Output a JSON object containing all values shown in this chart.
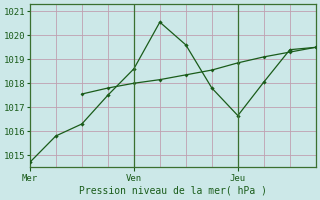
{
  "bg_color": "#cce8e8",
  "grid_color": "#c0a0b0",
  "line_color": "#1a5c1a",
  "line1_x": [
    0,
    0.5,
    1.0,
    1.5,
    2.0,
    2.5,
    3.0,
    3.5,
    4.0,
    4.5,
    5.0,
    5.5
  ],
  "line1_y": [
    1014.7,
    1015.8,
    1016.3,
    1017.5,
    1018.6,
    1020.55,
    1019.6,
    1017.8,
    1016.65,
    1018.05,
    1019.4,
    1019.5
  ],
  "line2_x": [
    1.0,
    1.5,
    2.0,
    2.5,
    3.0,
    3.5,
    4.0,
    4.5,
    5.0,
    5.5
  ],
  "line2_y": [
    1017.55,
    1017.8,
    1018.0,
    1018.15,
    1018.35,
    1018.55,
    1018.85,
    1019.1,
    1019.3,
    1019.5
  ],
  "ylim": [
    1014.5,
    1021.3
  ],
  "yticks": [
    1015,
    1016,
    1017,
    1018,
    1019,
    1020,
    1021
  ],
  "xlim": [
    0,
    5.5
  ],
  "vline_positions": [
    2.0,
    4.0
  ],
  "xtick_positions": [
    0,
    2.0,
    4.0
  ],
  "day_labels": [
    "Mer",
    "Ven",
    "Jeu"
  ],
  "xlabel": "Pression niveau de la mer( hPa )",
  "xlabel_color": "#1a5c1a",
  "tick_color": "#1a5c1a",
  "axis_color": "#3a7030",
  "bg_outer": "#cce8e8"
}
